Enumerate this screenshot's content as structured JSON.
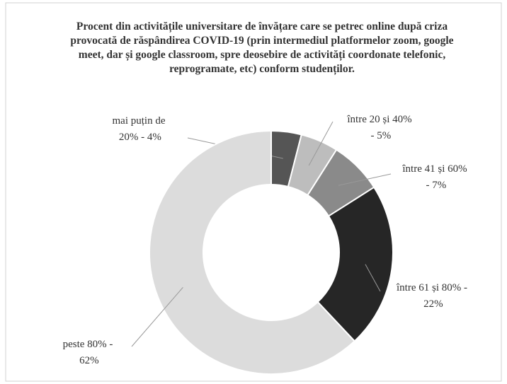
{
  "chart_data": {
    "type": "pie",
    "title": "Procent din activitățile universitare de învățare care se petrec online după criza provocată de răspândirea COVID-19 (prin intermediul platformelor zoom, google meet, dar și google classroom, spre deosebire de activități coordonate telefonic, reprogramate, etc) conform studenților.",
    "categories": [
      "mai puțin de 20%",
      "între 20 și 40%",
      "între 41 și 60%",
      "între 61 și 80%",
      "peste 80%"
    ],
    "values": [
      4,
      5,
      7,
      22,
      62
    ],
    "value_labels": [
      "mai puțin de 20% - 4%",
      "între 20 și 40% - 5%",
      "între 41 și 60% - 7%",
      "între 61 și 80% - 22%",
      "peste 80% - 62%"
    ],
    "colors": [
      "#555555",
      "#bdbdbd",
      "#8a8a8a",
      "#262626",
      "#dcdcdc"
    ]
  }
}
